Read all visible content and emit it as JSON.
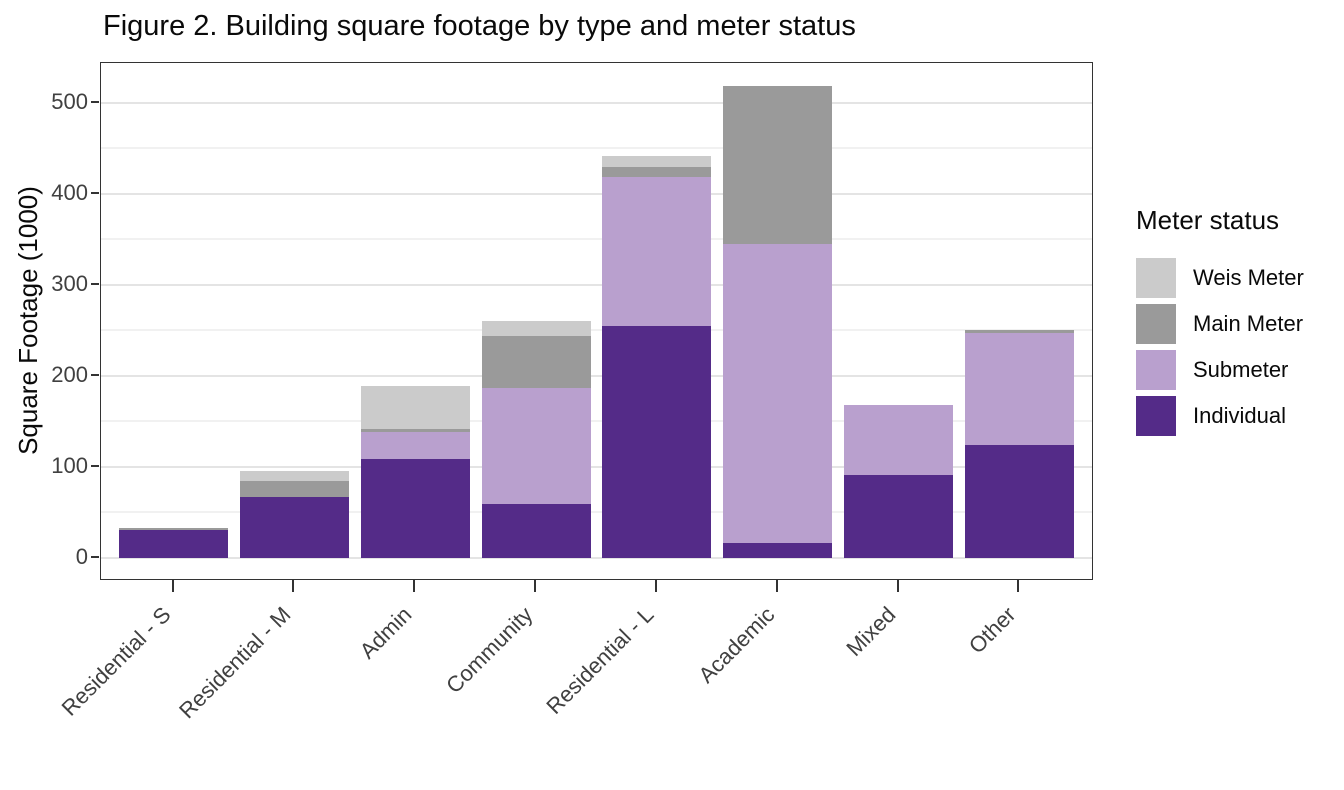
{
  "figure": {
    "title": "Figure 2. Building square footage by type and meter status"
  },
  "y_axis": {
    "label": "Square Footage (1000)",
    "ticks": [
      "0",
      "100",
      "200",
      "300",
      "400",
      "500"
    ]
  },
  "legend": {
    "title": "Meter status",
    "items": [
      {
        "label": "Weis Meter",
        "color": "#cbcbcb"
      },
      {
        "label": "Main Meter",
        "color": "#9a9a9a"
      },
      {
        "label": "Submeter",
        "color": "#b9a0ce"
      },
      {
        "label": "Individual",
        "color": "#542b88"
      }
    ]
  },
  "chart_data": {
    "type": "bar",
    "stacked": true,
    "title": "Figure 2. Building square footage by type and meter status",
    "xlabel": "",
    "ylabel": "Square Footage (1000)",
    "ylim": [
      0,
      545
    ],
    "yticks": [
      0,
      100,
      200,
      300,
      400,
      500
    ],
    "yticks_minor": [
      50,
      150,
      250,
      350,
      450
    ],
    "grid": true,
    "legend_title": "Meter status",
    "legend_position": "right",
    "categories": [
      "Residential - S",
      "Residential - M",
      "Admin",
      "Community",
      "Residential - L",
      "Academic",
      "Mixed",
      "Other"
    ],
    "series": [
      {
        "name": "Individual",
        "color": "#542b88",
        "values": [
          30,
          66,
          108,
          59,
          254,
          16,
          91,
          124
        ]
      },
      {
        "name": "Submeter",
        "color": "#b9a0ce",
        "values": [
          0,
          0,
          30,
          127,
          164,
          329,
          77,
          123
        ]
      },
      {
        "name": "Main Meter",
        "color": "#9a9a9a",
        "values": [
          2,
          18,
          3,
          57,
          11,
          173,
          0,
          3
        ]
      },
      {
        "name": "Weis Meter",
        "color": "#cbcbcb",
        "values": [
          0,
          11,
          47,
          17,
          12,
          0,
          0,
          0
        ]
      }
    ],
    "totals": [
      32,
      95,
      188,
      260,
      441,
      518,
      168,
      250
    ]
  }
}
